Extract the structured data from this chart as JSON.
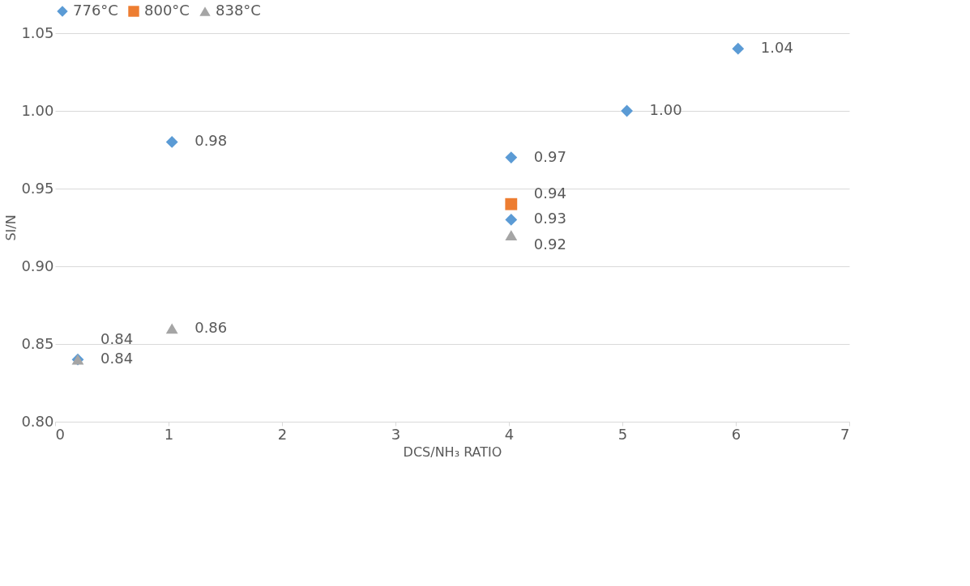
{
  "chart_data": {
    "type": "scatter",
    "xlabel": "DCS/NH₃ RATIO",
    "ylabel": "SI/N",
    "series": [
      {
        "name": "776°C",
        "color": "#5b9bd5",
        "marker": "diamond",
        "x": [
          0.2,
          1.03,
          4.02,
          4.02,
          5.04,
          6.02
        ],
        "values": [
          0.84,
          0.98,
          0.97,
          0.93,
          1.0,
          1.04
        ],
        "value_labels": [
          "0.84",
          "0.98",
          "0.97",
          "0.93",
          "1.00",
          "1.04"
        ]
      },
      {
        "name": "800°C",
        "color": "#ed7d31",
        "marker": "square",
        "x": [
          4.02
        ],
        "values": [
          0.94
        ],
        "value_labels": [
          "0.94"
        ]
      },
      {
        "name": "838°C",
        "color": "#a5a5a5",
        "marker": "triangle",
        "x": [
          0.2,
          1.03,
          4.02
        ],
        "values": [
          0.84,
          0.86,
          0.92
        ],
        "value_labels": [
          "0.84",
          "0.86",
          "0.92"
        ]
      }
    ],
    "xlim": [
      0,
      7
    ],
    "xticks": [
      0,
      1,
      2,
      3,
      4,
      5,
      6,
      7
    ],
    "ylim": [
      0.8,
      1.05
    ],
    "yticks": [
      {
        "value": 0.8,
        "label": "0.80"
      },
      {
        "value": 0.85,
        "label": "0.85"
      },
      {
        "value": 0.9,
        "label": "0.90"
      },
      {
        "value": 0.95,
        "label": "0.95"
      },
      {
        "value": 1.0,
        "label": "1.00"
      },
      {
        "value": 1.05,
        "label": "1.05"
      }
    ],
    "grid": "y",
    "legend": "top"
  }
}
